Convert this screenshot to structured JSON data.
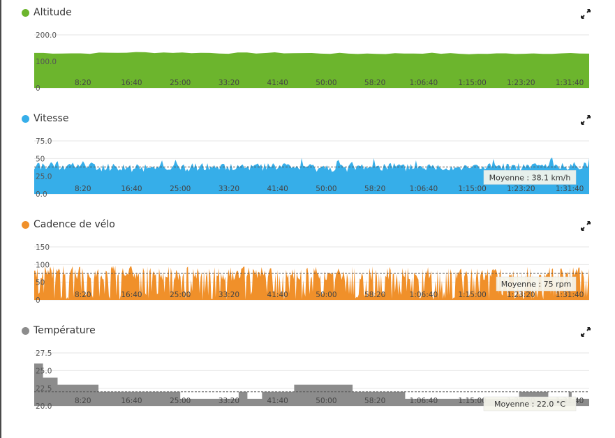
{
  "x_ticks": [
    "8:20",
    "16:40",
    "25:00",
    "33:20",
    "41:40",
    "50:00",
    "58:20",
    "1:06:40",
    "1:15:00",
    "1:23:20",
    "1:31:40"
  ],
  "chart_data": [
    {
      "type": "area",
      "title": "Altitude",
      "color": "#6cb52d",
      "ylim": [
        0,
        200
      ],
      "y_ticks": [
        "200.0",
        "100.0",
        "0"
      ],
      "y_tick_values": [
        200,
        100,
        0
      ],
      "x": [
        "0:00",
        "8:20",
        "16:40",
        "25:00",
        "33:20",
        "41:40",
        "50:00",
        "58:20",
        "1:06:40",
        "1:15:00",
        "1:23:20",
        "1:31:40",
        "1:35:00"
      ],
      "values": [
        132,
        130,
        134,
        133,
        131,
        132,
        130,
        129,
        131,
        128,
        130,
        131,
        127
      ],
      "average_label": "",
      "average": null
    },
    {
      "type": "area",
      "title": "Vitesse",
      "color": "#36aee9",
      "ylim": [
        0,
        75
      ],
      "y_ticks": [
        "75.0",
        "50",
        "25.0",
        "0.0"
      ],
      "y_tick_values": [
        75,
        50,
        25,
        0
      ],
      "x": [
        "0:00",
        "8:20",
        "16:40",
        "25:00",
        "33:20",
        "41:40",
        "50:00",
        "58:20",
        "1:06:40",
        "1:15:00",
        "1:23:20",
        "1:31:40",
        "1:35:00"
      ],
      "values": [
        40,
        38,
        37,
        38,
        37,
        38,
        36,
        38,
        37,
        37,
        38,
        39,
        41
      ],
      "average_label": "Moyenne : 38.1 km/h",
      "average": 38.1
    },
    {
      "type": "area",
      "title": "Cadence de vélo",
      "color": "#f0902a",
      "ylim": [
        0,
        150
      ],
      "y_ticks": [
        "150",
        "100",
        "50",
        "0"
      ],
      "y_tick_values": [
        150,
        100,
        50,
        0
      ],
      "x": [
        "0:00",
        "8:20",
        "16:40",
        "25:00",
        "33:20",
        "41:40",
        "50:00",
        "58:20",
        "1:06:40",
        "1:15:00",
        "1:23:20",
        "1:31:40",
        "1:35:00"
      ],
      "values": [
        80,
        78,
        76,
        75,
        74,
        76,
        74,
        75,
        73,
        75,
        74,
        76,
        75
      ],
      "average_label": "Moyenne : 75 rpm",
      "average": 75
    },
    {
      "type": "area",
      "title": "Température",
      "color": "#8c8c8c",
      "ylim": [
        20,
        27.5
      ],
      "y_ticks": [
        "27.5",
        "25.0",
        "22.5",
        "20.0"
      ],
      "y_tick_values": [
        27.5,
        25,
        22.5,
        20
      ],
      "x": [
        "0:00",
        "1:30",
        "4:00",
        "11:00",
        "25:00",
        "35:00",
        "36:30",
        "39:00",
        "44:30",
        "54:30",
        "57:30",
        "1:03:30",
        "1:12:00",
        "1:23:00",
        "1:28:00",
        "1:31:30",
        "1:32:00",
        "1:35:00"
      ],
      "values": [
        26,
        24,
        23,
        22,
        21,
        22,
        21,
        22,
        23,
        22,
        22,
        21,
        21,
        22,
        21,
        22,
        21,
        21
      ],
      "average_label": "Moyenne : 22.0 °C",
      "average": 22.0
    }
  ]
}
